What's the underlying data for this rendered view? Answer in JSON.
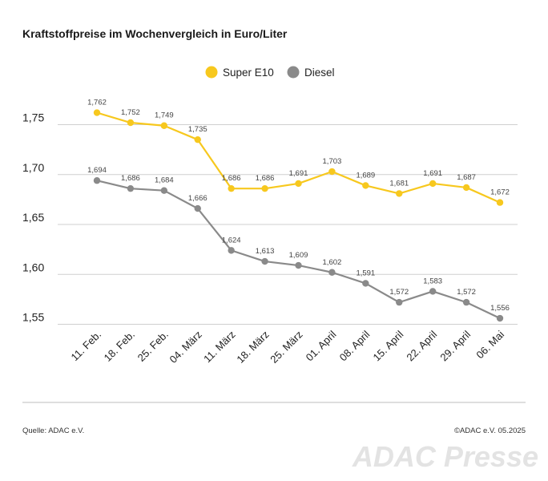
{
  "title": "Kraftstoffpreise im Wochenvergleich in Euro/Liter",
  "footer": {
    "source": "Quelle: ADAC e.V.",
    "copyright": "©ADAC e.V. 05.2025",
    "watermark": "ADAC Presse"
  },
  "colors": {
    "super_e10": "#f7c81e",
    "diesel": "#8a8a8a",
    "grid": "#cfcfcf"
  },
  "chart_data": {
    "type": "line",
    "title": "Kraftstoffpreise im Wochenvergleich in Euro/Liter",
    "xlabel": "",
    "ylabel": "",
    "categories": [
      "11. Feb.",
      "18. Feb.",
      "25. Feb.",
      "04. März",
      "11. März",
      "18. März",
      "25. März",
      "01. April",
      "08. April",
      "15. April",
      "22. April",
      "29. April",
      "06. Mai"
    ],
    "yticks": [
      "1,75",
      "1,70",
      "1,65",
      "1,60",
      "1,55"
    ],
    "ytick_values": [
      1.75,
      1.7,
      1.65,
      1.6,
      1.55
    ],
    "ylim": [
      1.55,
      1.78
    ],
    "grid": true,
    "legend_position": "top-center",
    "series": [
      {
        "name": "Super E10",
        "color": "#f7c81e",
        "values": [
          1.762,
          1.752,
          1.749,
          1.735,
          1.686,
          1.686,
          1.691,
          1.703,
          1.689,
          1.681,
          1.691,
          1.687,
          1.672
        ],
        "labels": [
          "1,762",
          "1,752",
          "1,749",
          "1,735",
          "1,686",
          "1,686",
          "1,691",
          "1,703",
          "1,689",
          "1,681",
          "1,691",
          "1,687",
          "1,672"
        ]
      },
      {
        "name": "Diesel",
        "color": "#8a8a8a",
        "values": [
          1.694,
          1.686,
          1.684,
          1.666,
          1.624,
          1.613,
          1.609,
          1.602,
          1.591,
          1.572,
          1.583,
          1.572,
          1.556
        ],
        "labels": [
          "1,694",
          "1,686",
          "1,684",
          "1,666",
          "1,624",
          "1,613",
          "1,609",
          "1,602",
          "1,591",
          "1,572",
          "1,583",
          "1,572",
          "1,556"
        ]
      }
    ]
  }
}
